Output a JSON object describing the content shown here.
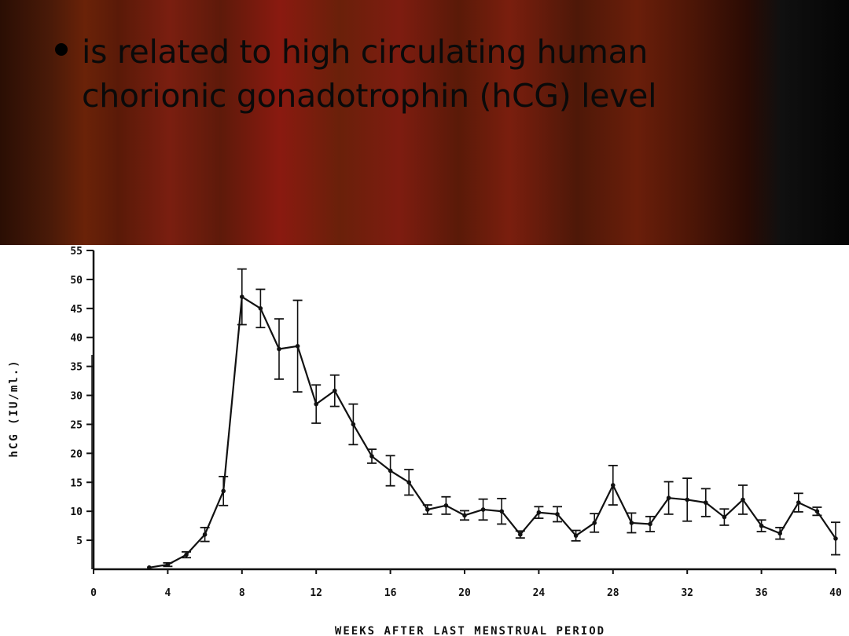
{
  "slide": {
    "bullet_text": "is related to high circulating human chorionic gonadotrophin (hCG) level"
  },
  "colors": {
    "chart_background": "#ffffff",
    "line": "#111111",
    "bullet_text": "#0a0a0a"
  },
  "chart_data": {
    "type": "line",
    "title": "",
    "xlabel": "WEEKS AFTER LAST MENSTRUAL PERIOD",
    "ylabel": "hCG (IU/ml.)",
    "xlim": [
      0,
      40
    ],
    "ylim": [
      0,
      55
    ],
    "x_ticks": [
      "0",
      "4",
      "8",
      "12",
      "16",
      "20",
      "24",
      "28",
      "32",
      "36",
      "40"
    ],
    "y_ticks": [
      "5",
      "10",
      "15",
      "20",
      "25",
      "30",
      "35",
      "40",
      "45",
      "50",
      "55"
    ],
    "grid": false,
    "points": [
      {
        "x": 3,
        "y": 0.3,
        "err": 0
      },
      {
        "x": 4,
        "y": 0.8,
        "err": 0.3
      },
      {
        "x": 5,
        "y": 2.5,
        "err": 0.5
      },
      {
        "x": 6,
        "y": 6.0,
        "err": 1.2
      },
      {
        "x": 7,
        "y": 13.5,
        "err": 2.5
      },
      {
        "x": 8,
        "y": 47.0,
        "err": 4.8
      },
      {
        "x": 9,
        "y": 45.0,
        "err": 3.3
      },
      {
        "x": 10,
        "y": 38.0,
        "err": 5.2
      },
      {
        "x": 11,
        "y": 38.5,
        "err": 7.9
      },
      {
        "x": 12,
        "y": 28.5,
        "err": 3.3
      },
      {
        "x": 13,
        "y": 30.8,
        "err": 2.7
      },
      {
        "x": 14,
        "y": 25.0,
        "err": 3.5
      },
      {
        "x": 15,
        "y": 19.5,
        "err": 1.2
      },
      {
        "x": 16,
        "y": 17.0,
        "err": 2.6
      },
      {
        "x": 17,
        "y": 15.0,
        "err": 2.2
      },
      {
        "x": 18,
        "y": 10.3,
        "err": 0.8
      },
      {
        "x": 19,
        "y": 11.0,
        "err": 1.5
      },
      {
        "x": 20,
        "y": 9.3,
        "err": 0.8
      },
      {
        "x": 21,
        "y": 10.3,
        "err": 1.8
      },
      {
        "x": 22,
        "y": 10.0,
        "err": 2.2
      },
      {
        "x": 23,
        "y": 6.0,
        "err": 0.6
      },
      {
        "x": 24,
        "y": 9.8,
        "err": 1.0
      },
      {
        "x": 25,
        "y": 9.5,
        "err": 1.3
      },
      {
        "x": 26,
        "y": 5.8,
        "err": 0.9
      },
      {
        "x": 27,
        "y": 8.0,
        "err": 1.6
      },
      {
        "x": 28,
        "y": 14.5,
        "err": 3.4
      },
      {
        "x": 29,
        "y": 8.0,
        "err": 1.7
      },
      {
        "x": 30,
        "y": 7.8,
        "err": 1.3
      },
      {
        "x": 31,
        "y": 12.3,
        "err": 2.8
      },
      {
        "x": 32,
        "y": 12.0,
        "err": 3.7
      },
      {
        "x": 33,
        "y": 11.5,
        "err": 2.4
      },
      {
        "x": 34,
        "y": 9.0,
        "err": 1.4
      },
      {
        "x": 35,
        "y": 12.0,
        "err": 2.5
      },
      {
        "x": 36,
        "y": 7.5,
        "err": 1.0
      },
      {
        "x": 37,
        "y": 6.2,
        "err": 1.0
      },
      {
        "x": 38,
        "y": 11.5,
        "err": 1.6
      },
      {
        "x": 39,
        "y": 10.0,
        "err": 0.7
      },
      {
        "x": 40,
        "y": 5.3,
        "err": 2.8
      }
    ]
  }
}
